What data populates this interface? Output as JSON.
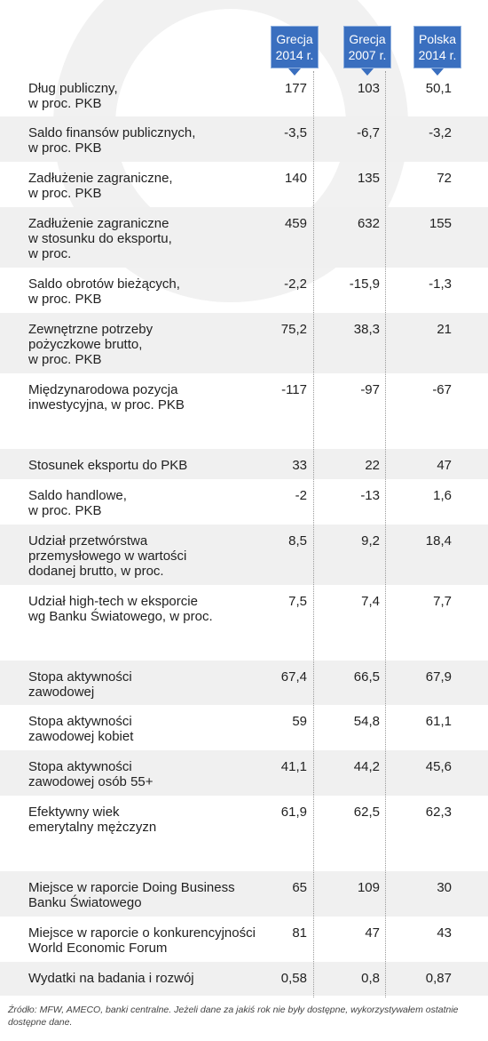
{
  "chart_data": {
    "type": "table",
    "columns": [
      {
        "line1": "Grecja",
        "line2": "2014 r."
      },
      {
        "line1": "Grecja",
        "line2": "2007 r."
      },
      {
        "line1": "Polska",
        "line2": "2014 r."
      }
    ],
    "rows": [
      {
        "label": [
          "Dług publiczny,",
          "w proc. PKB"
        ],
        "values": [
          "177",
          "103",
          "50,1"
        ]
      },
      {
        "label": [
          "Saldo finansów publicznych,",
          "w proc. PKB"
        ],
        "values": [
          "-3,5",
          "-6,7",
          "-3,2"
        ]
      },
      {
        "label": [
          "Zadłużenie zagraniczne,",
          "w proc. PKB"
        ],
        "values": [
          "140",
          "135",
          "72"
        ]
      },
      {
        "label": [
          "Zadłużenie zagraniczne",
          "w stosunku do eksportu,",
          "w proc."
        ],
        "values": [
          "459",
          "632",
          "155"
        ]
      },
      {
        "label": [
          "Saldo obrotów bieżących,",
          "w proc. PKB"
        ],
        "values": [
          "-2,2",
          "-15,9",
          "-1,3"
        ]
      },
      {
        "label": [
          "Zewnętrzne potrzeby",
          "pożyczkowe brutto,",
          "w proc. PKB"
        ],
        "values": [
          "75,2",
          "38,3",
          "21"
        ]
      },
      {
        "label": [
          "Międzynarodowa pozycja",
          "inwestycyjna, w proc. PKB"
        ],
        "values": [
          "-117",
          "-97",
          "-67"
        ]
      },
      {
        "label": [
          "Stosunek eksportu do PKB"
        ],
        "values": [
          "33",
          "22",
          "47"
        ]
      },
      {
        "label": [
          "Saldo handlowe,",
          "w proc. PKB"
        ],
        "values": [
          "-2",
          "-13",
          "1,6"
        ]
      },
      {
        "label": [
          "Udział przetwórstwa",
          "przemysłowego w wartości",
          "dodanej brutto, w proc."
        ],
        "values": [
          "8,5",
          "9,2",
          "18,4"
        ]
      },
      {
        "label": [
          "Udział high-tech w eksporcie",
          "wg Banku Światowego, w proc."
        ],
        "values": [
          "7,5",
          "7,4",
          "7,7"
        ]
      },
      {
        "label": [
          "Stopa aktywności",
          "zawodowej"
        ],
        "values": [
          "67,4",
          "66,5",
          "67,9"
        ]
      },
      {
        "label": [
          "Stopa aktywności",
          "zawodowej kobiet"
        ],
        "values": [
          "59",
          "54,8",
          "61,1"
        ]
      },
      {
        "label": [
          "Stopa aktywności",
          "zawodowej osób 55+"
        ],
        "values": [
          "41,1",
          "44,2",
          "45,6"
        ]
      },
      {
        "label": [
          "Efektywny wiek",
          "emerytalny mężczyzn"
        ],
        "values": [
          "61,9",
          "62,5",
          "62,3"
        ]
      },
      {
        "label": [
          "Miejsce w raporcie Doing Business",
          "Banku Światowego"
        ],
        "values": [
          "65",
          "109",
          "30"
        ]
      },
      {
        "label": [
          "Miejsce w raporcie o konkurencyjności",
          "World Economic Forum"
        ],
        "values": [
          "81",
          "47",
          "43"
        ]
      },
      {
        "label": [
          "Wydatki na badania i rozwój"
        ],
        "values": [
          "0,58",
          "0,8",
          "0,87"
        ]
      }
    ],
    "source": "Źródło: MFW, AMECO, banki centralne. Jeżeli dane za jakiś rok nie były dostępne, wykorzystywałem ostatnie dostępne dane."
  },
  "colors": {
    "header_bg": "#3a6fbf",
    "shaded_row": "#f0f0f0",
    "text": "#222222"
  }
}
